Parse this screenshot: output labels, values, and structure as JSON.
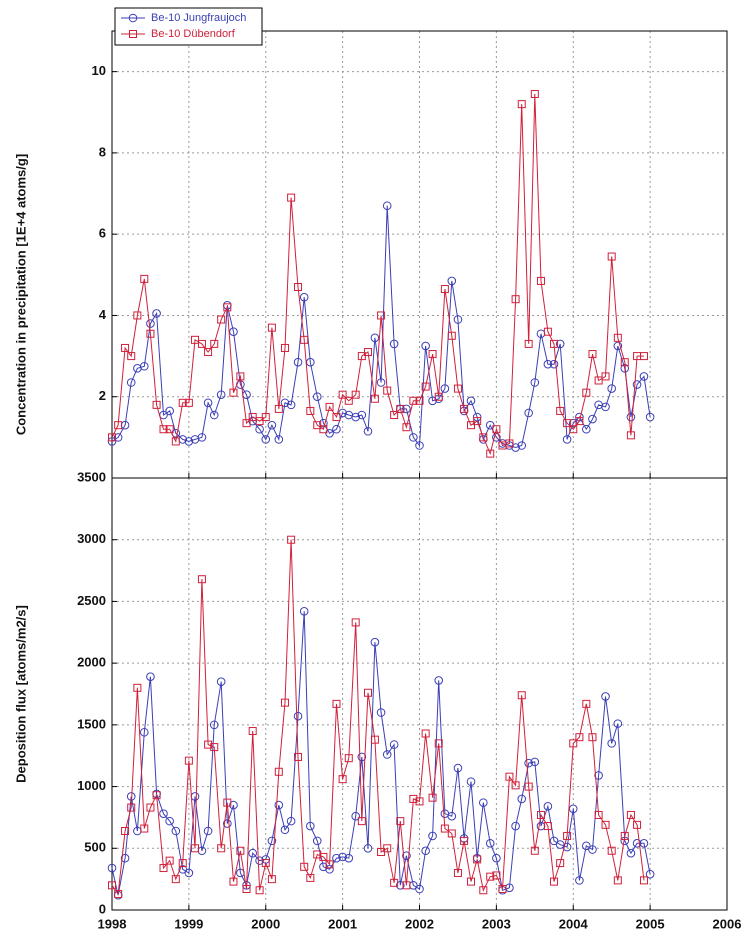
{
  "chart_data": [
    {
      "type": "line",
      "y_label": "Concentration in precipitation [1E+4 atoms/g]",
      "xlim": [
        1998,
        2006
      ],
      "xticks": [
        1998,
        1999,
        2000,
        2001,
        2002,
        2003,
        2004,
        2005,
        2006
      ],
      "ylim": [
        0,
        11
      ],
      "yticks": [
        2,
        4,
        6,
        8,
        10
      ],
      "grid": true,
      "legend": "top-left",
      "x": [
        1998,
        1998.08,
        1998.17,
        1998.25,
        1998.33,
        1998.42,
        1998.5,
        1998.58,
        1998.67,
        1998.75,
        1998.83,
        1998.92,
        1999,
        1999.08,
        1999.17,
        1999.25,
        1999.33,
        1999.42,
        1999.5,
        1999.58,
        1999.67,
        1999.75,
        1999.83,
        1999.92,
        2000,
        2000.08,
        2000.17,
        2000.25,
        2000.33,
        2000.42,
        2000.5,
        2000.58,
        2000.67,
        2000.75,
        2000.83,
        2000.92,
        2001,
        2001.08,
        2001.17,
        2001.25,
        2001.33,
        2001.42,
        2001.5,
        2001.58,
        2001.67,
        2001.75,
        2001.83,
        2001.92,
        2002,
        2002.08,
        2002.17,
        2002.25,
        2002.33,
        2002.42,
        2002.5,
        2002.58,
        2002.67,
        2002.75,
        2002.83,
        2002.92,
        2003,
        2003.08,
        2003.17,
        2003.25,
        2003.33,
        2003.42,
        2003.5,
        2003.58,
        2003.67,
        2003.75,
        2003.83,
        2003.92,
        2004,
        2004.08,
        2004.17,
        2004.25,
        2004.33,
        2004.42,
        2004.5,
        2004.58,
        2004.67,
        2004.75,
        2004.83,
        2004.92,
        2005
      ],
      "series": [
        {
          "name": "Be-10 Jungfraujoch",
          "color": "#3b3fb6",
          "marker": "circle",
          "values": [
            0.9,
            1.0,
            1.3,
            2.35,
            2.7,
            2.75,
            3.8,
            4.05,
            1.55,
            1.65,
            1.1,
            0.95,
            0.9,
            0.95,
            1.0,
            1.85,
            1.55,
            2.05,
            4.25,
            3.6,
            2.3,
            2.05,
            1.4,
            1.2,
            0.95,
            1.3,
            0.95,
            1.85,
            1.8,
            2.85,
            4.45,
            2.85,
            2.0,
            1.35,
            1.1,
            1.2,
            1.6,
            1.55,
            1.5,
            1.55,
            1.15,
            3.45,
            2.35,
            6.7,
            3.3,
            1.7,
            1.7,
            1.0,
            0.8,
            3.25,
            1.9,
            1.95,
            2.2,
            4.85,
            3.9,
            1.65,
            1.9,
            1.5,
            0.95,
            1.3,
            1.0,
            0.85,
            0.8,
            0.75,
            0.8,
            1.6,
            2.35,
            3.55,
            2.8,
            2.8,
            3.3,
            0.95,
            1.35,
            1.5,
            1.2,
            1.45,
            1.8,
            1.75,
            2.2,
            3.25,
            2.7,
            1.5,
            2.3,
            2.5,
            1.5
          ]
        },
        {
          "name": "Be-10 Dübendorf",
          "color": "#d0203a",
          "marker": "square",
          "values": [
            1.0,
            1.3,
            3.2,
            3.0,
            4.0,
            4.9,
            3.55,
            1.8,
            1.2,
            1.2,
            0.9,
            1.85,
            1.85,
            3.4,
            3.3,
            3.1,
            3.3,
            3.9,
            4.2,
            2.1,
            2.5,
            1.35,
            1.5,
            1.4,
            1.5,
            3.7,
            1.7,
            3.2,
            6.9,
            4.7,
            3.4,
            1.65,
            1.3,
            1.2,
            1.75,
            1.5,
            2.05,
            1.9,
            2.05,
            3.0,
            3.1,
            1.95,
            4.0,
            2.15,
            1.55,
            1.7,
            1.25,
            1.9,
            1.9,
            2.25,
            3.05,
            2.0,
            4.65,
            3.5,
            2.2,
            1.7,
            1.3,
            1.4,
            1.0,
            0.6,
            1.2,
            0.8,
            0.85,
            4.4,
            9.2,
            3.3,
            9.45,
            4.85,
            3.6,
            3.3,
            1.65,
            1.35,
            1.2,
            1.4,
            2.1,
            3.05,
            2.4,
            2.5,
            5.45,
            3.45,
            2.85,
            1.05,
            3.0,
            3.0,
            null
          ]
        }
      ]
    },
    {
      "type": "line",
      "y_label": "Deposition flux [atoms/m2/s]",
      "xlim": [
        1998,
        2006
      ],
      "xticks": [
        1998,
        1999,
        2000,
        2001,
        2002,
        2003,
        2004,
        2005,
        2006
      ],
      "ylim": [
        0,
        3500
      ],
      "yticks": [
        0,
        500,
        1000,
        1500,
        2000,
        2500,
        3000,
        3500
      ],
      "grid": true,
      "x": [
        1998,
        1998.08,
        1998.17,
        1998.25,
        1998.33,
        1998.42,
        1998.5,
        1998.58,
        1998.67,
        1998.75,
        1998.83,
        1998.92,
        1999,
        1999.08,
        1999.17,
        1999.25,
        1999.33,
        1999.42,
        1999.5,
        1999.58,
        1999.67,
        1999.75,
        1999.83,
        1999.92,
        2000,
        2000.08,
        2000.17,
        2000.25,
        2000.33,
        2000.42,
        2000.5,
        2000.58,
        2000.67,
        2000.75,
        2000.83,
        2000.92,
        2001,
        2001.08,
        2001.17,
        2001.25,
        2001.33,
        2001.42,
        2001.5,
        2001.58,
        2001.67,
        2001.75,
        2001.83,
        2001.92,
        2002,
        2002.08,
        2002.17,
        2002.25,
        2002.33,
        2002.42,
        2002.5,
        2002.58,
        2002.67,
        2002.75,
        2002.83,
        2002.92,
        2003,
        2003.08,
        2003.17,
        2003.25,
        2003.33,
        2003.42,
        2003.5,
        2003.58,
        2003.67,
        2003.75,
        2003.83,
        2003.92,
        2004,
        2004.08,
        2004.17,
        2004.25,
        2004.33,
        2004.42,
        2004.5,
        2004.58,
        2004.67,
        2004.75,
        2004.83,
        2004.92,
        2005
      ],
      "series": [
        {
          "color": "#3b3fb6",
          "marker": "circle",
          "values": [
            340,
            120,
            420,
            920,
            640,
            1440,
            1890,
            940,
            780,
            720,
            640,
            330,
            300,
            920,
            480,
            640,
            1500,
            1850,
            700,
            850,
            300,
            200,
            460,
            400,
            410,
            560,
            850,
            650,
            720,
            1570,
            2420,
            680,
            560,
            350,
            330,
            420,
            430,
            420,
            760,
            1240,
            500,
            2170,
            1600,
            1260,
            1340,
            200,
            440,
            200,
            170,
            480,
            600,
            1860,
            780,
            760,
            1150,
            580,
            1040,
            420,
            870,
            540,
            420,
            160,
            180,
            680,
            900,
            1190,
            1200,
            680,
            840,
            560,
            530,
            510,
            820,
            240,
            520,
            490,
            1090,
            1730,
            1350,
            1510,
            560,
            460,
            540,
            540,
            290
          ]
        },
        {
          "color": "#d0203a",
          "marker": "square",
          "values": [
            200,
            130,
            640,
            830,
            1800,
            660,
            830,
            930,
            340,
            400,
            250,
            380,
            1210,
            500,
            2680,
            1340,
            1320,
            500,
            870,
            230,
            480,
            170,
            1450,
            160,
            380,
            250,
            1120,
            1680,
            3000,
            1240,
            350,
            260,
            450,
            430,
            370,
            1670,
            1060,
            1230,
            2330,
            720,
            1760,
            1380,
            470,
            500,
            220,
            720,
            200,
            900,
            880,
            1430,
            910,
            1350,
            660,
            620,
            300,
            560,
            230,
            410,
            160,
            270,
            280,
            170,
            1080,
            1010,
            1740,
            1000,
            480,
            770,
            680,
            230,
            380,
            600,
            1350,
            1400,
            1670,
            1400,
            770,
            690,
            480,
            240,
            600,
            770,
            690,
            240,
            null
          ]
        }
      ]
    }
  ]
}
